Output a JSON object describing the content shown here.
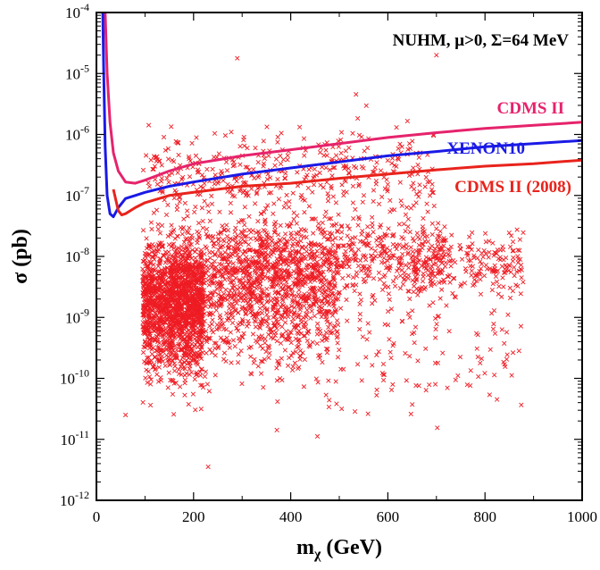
{
  "chart_data": {
    "type": "scatter",
    "title": "NUHM, μ>0, Σ=64 MeV",
    "xlabel": "m",
    "xlabel_sub": "χ",
    "xlabel_unit": "(GeV)",
    "ylabel": "σ (pb)",
    "xlim": [
      0,
      1000
    ],
    "ylim_log10": [
      -12,
      -4
    ],
    "x_ticks": [
      0,
      200,
      400,
      600,
      800,
      1000
    ],
    "y_ticks_exp": [
      -12,
      -11,
      -10,
      -9,
      -8,
      -7,
      -6,
      -5,
      -4
    ],
    "y_tick_base": "10",
    "scatter_color": "#ee1c24",
    "scatter_marker": "x",
    "scatter_regions": [
      {
        "x_min": 95,
        "x_max": 220,
        "log_y_center": -8.8,
        "log_y_spread": 0.85,
        "n": 1500
      },
      {
        "x_min": 150,
        "x_max": 500,
        "log_y_center": -8.6,
        "log_y_spread": 0.9,
        "n": 1200
      },
      {
        "x_min": 250,
        "x_max": 720,
        "log_y_center": -8.0,
        "log_y_spread": 0.55,
        "n": 650
      },
      {
        "x_min": 650,
        "x_max": 880,
        "log_y_center": -8.1,
        "log_y_spread": 0.45,
        "n": 220
      },
      {
        "x_min": 95,
        "x_max": 700,
        "log_y_center": -6.6,
        "log_y_spread": 0.55,
        "n": 420
      },
      {
        "x_min": 95,
        "x_max": 880,
        "log_y_center": -9.4,
        "log_y_spread": 0.9,
        "n": 260
      }
    ],
    "scatter_outliers": [
      [
        60,
        -10.6
      ],
      [
        230,
        -11.45
      ],
      [
        455,
        -10.95
      ],
      [
        290,
        -4.75
      ],
      [
        700,
        -4.7
      ],
      [
        835,
        -9.2
      ],
      [
        870,
        -9.55
      ],
      [
        855,
        -9.95
      ],
      [
        610,
        -10.1
      ],
      [
        790,
        -9.75
      ],
      [
        570,
        -7.6
      ],
      [
        545,
        -6.4
      ],
      [
        505,
        -10.5
      ]
    ],
    "series": [
      {
        "name": "CDMS II",
        "color": "#e6236c",
        "points": [
          [
            18,
            -4.0
          ],
          [
            22,
            -5.0
          ],
          [
            28,
            -5.8
          ],
          [
            35,
            -6.3
          ],
          [
            45,
            -6.6
          ],
          [
            60,
            -6.78
          ],
          [
            80,
            -6.8
          ],
          [
            100,
            -6.75
          ],
          [
            150,
            -6.6
          ],
          [
            200,
            -6.48
          ],
          [
            300,
            -6.35
          ],
          [
            400,
            -6.25
          ],
          [
            500,
            -6.15
          ],
          [
            600,
            -6.05
          ],
          [
            700,
            -5.97
          ],
          [
            800,
            -5.9
          ],
          [
            900,
            -5.85
          ],
          [
            1000,
            -5.8
          ]
        ]
      },
      {
        "name": "XENON10",
        "color": "#1a1ae6",
        "points": [
          [
            13,
            -4.0
          ],
          [
            15,
            -5.0
          ],
          [
            18,
            -6.2
          ],
          [
            22,
            -7.0
          ],
          [
            28,
            -7.3
          ],
          [
            35,
            -7.35
          ],
          [
            45,
            -7.2
          ],
          [
            60,
            -7.05
          ],
          [
            80,
            -7.0
          ],
          [
            100,
            -6.95
          ],
          [
            150,
            -6.85
          ],
          [
            200,
            -6.78
          ],
          [
            300,
            -6.65
          ],
          [
            400,
            -6.55
          ],
          [
            500,
            -6.45
          ],
          [
            600,
            -6.35
          ],
          [
            700,
            -6.28
          ],
          [
            800,
            -6.2
          ],
          [
            900,
            -6.15
          ],
          [
            1000,
            -6.1
          ]
        ]
      },
      {
        "name": "CDMS II (2008)",
        "color": "#e8231c",
        "points": [
          [
            35,
            -6.9
          ],
          [
            45,
            -7.25
          ],
          [
            52,
            -7.32
          ],
          [
            60,
            -7.3
          ],
          [
            80,
            -7.2
          ],
          [
            100,
            -7.12
          ],
          [
            150,
            -7.0
          ],
          [
            200,
            -6.95
          ],
          [
            300,
            -6.85
          ],
          [
            400,
            -6.8
          ],
          [
            500,
            -6.72
          ],
          [
            600,
            -6.65
          ],
          [
            700,
            -6.58
          ],
          [
            800,
            -6.52
          ],
          [
            900,
            -6.48
          ],
          [
            1000,
            -6.42
          ]
        ]
      }
    ]
  }
}
